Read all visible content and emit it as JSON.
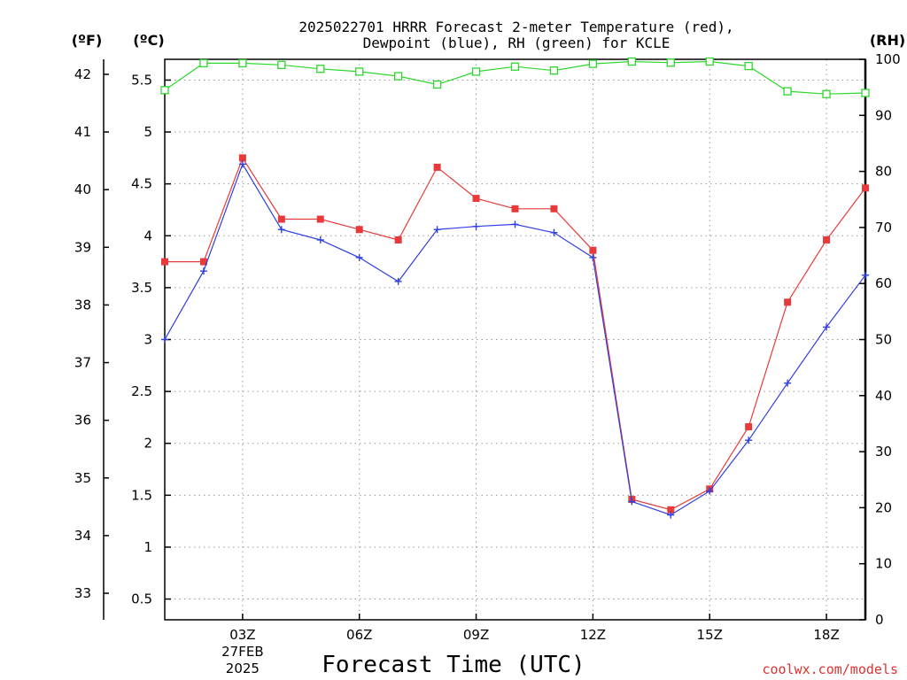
{
  "chart_data": {
    "type": "line",
    "title_lines": [
      "2025022701 HRRR Forecast 2-meter Temperature (red),",
      "Dewpoint (blue), RH (green) for KCLE"
    ],
    "xlabel": "Forecast Time (UTC)",
    "left_unit_f": "(ºF)",
    "left_unit_c": "(ºC)",
    "right_unit": "(RH)",
    "credit": "coolwx.com/models",
    "x_hours": [
      1,
      2,
      3,
      4,
      5,
      6,
      7,
      8,
      9,
      10,
      11,
      12,
      13,
      14,
      15,
      16,
      17,
      18,
      19
    ],
    "xlim": [
      1,
      19
    ],
    "x_ticks": [
      {
        "hour": 3,
        "label": "03Z",
        "sub1": "27FEB",
        "sub2": "2025"
      },
      {
        "hour": 6,
        "label": "06Z"
      },
      {
        "hour": 9,
        "label": "09Z"
      },
      {
        "hour": 12,
        "label": "12Z"
      },
      {
        "hour": 15,
        "label": "15Z"
      },
      {
        "hour": 18,
        "label": "18Z"
      }
    ],
    "ylim_c": [
      0.3,
      5.7
    ],
    "y_ticks_c": [
      "0.5",
      "1",
      "1.5",
      "2",
      "2.5",
      "3",
      "3.5",
      "4",
      "4.5",
      "5",
      "5.5"
    ],
    "y_ticks_f": [
      "33",
      "34",
      "35",
      "36",
      "37",
      "38",
      "39",
      "40",
      "41",
      "42"
    ],
    "ylim_rh": [
      0,
      100
    ],
    "y_ticks_rh": [
      "0",
      "10",
      "20",
      "30",
      "40",
      "50",
      "60",
      "70",
      "80",
      "90",
      "100"
    ],
    "grid": true,
    "series": [
      {
        "name": "Temperature (red)",
        "color": "#e83a3a",
        "marker": "filled-square",
        "axis": "c",
        "values": [
          3.75,
          3.75,
          4.75,
          4.16,
          4.16,
          4.06,
          3.96,
          4.66,
          4.36,
          4.26,
          4.26,
          3.86,
          1.46,
          1.36,
          1.56,
          2.16,
          3.36,
          3.96,
          4.46
        ]
      },
      {
        "name": "Dewpoint (blue)",
        "color": "#2f3fe0",
        "marker": "plus",
        "axis": "c",
        "values": [
          3.0,
          3.66,
          4.69,
          4.06,
          3.96,
          3.79,
          3.56,
          4.06,
          4.09,
          4.11,
          4.03,
          3.79,
          1.44,
          1.31,
          1.54,
          2.03,
          2.58,
          3.12,
          3.62
        ]
      },
      {
        "name": "RH (green)",
        "color": "#2ed62e",
        "marker": "open-square",
        "axis": "rh",
        "values": [
          94.5,
          99.3,
          99.3,
          99.0,
          98.3,
          97.8,
          97.0,
          95.5,
          97.8,
          98.7,
          98.0,
          99.2,
          99.6,
          99.4,
          99.6,
          98.8,
          94.3,
          93.8,
          94.0
        ]
      }
    ]
  }
}
